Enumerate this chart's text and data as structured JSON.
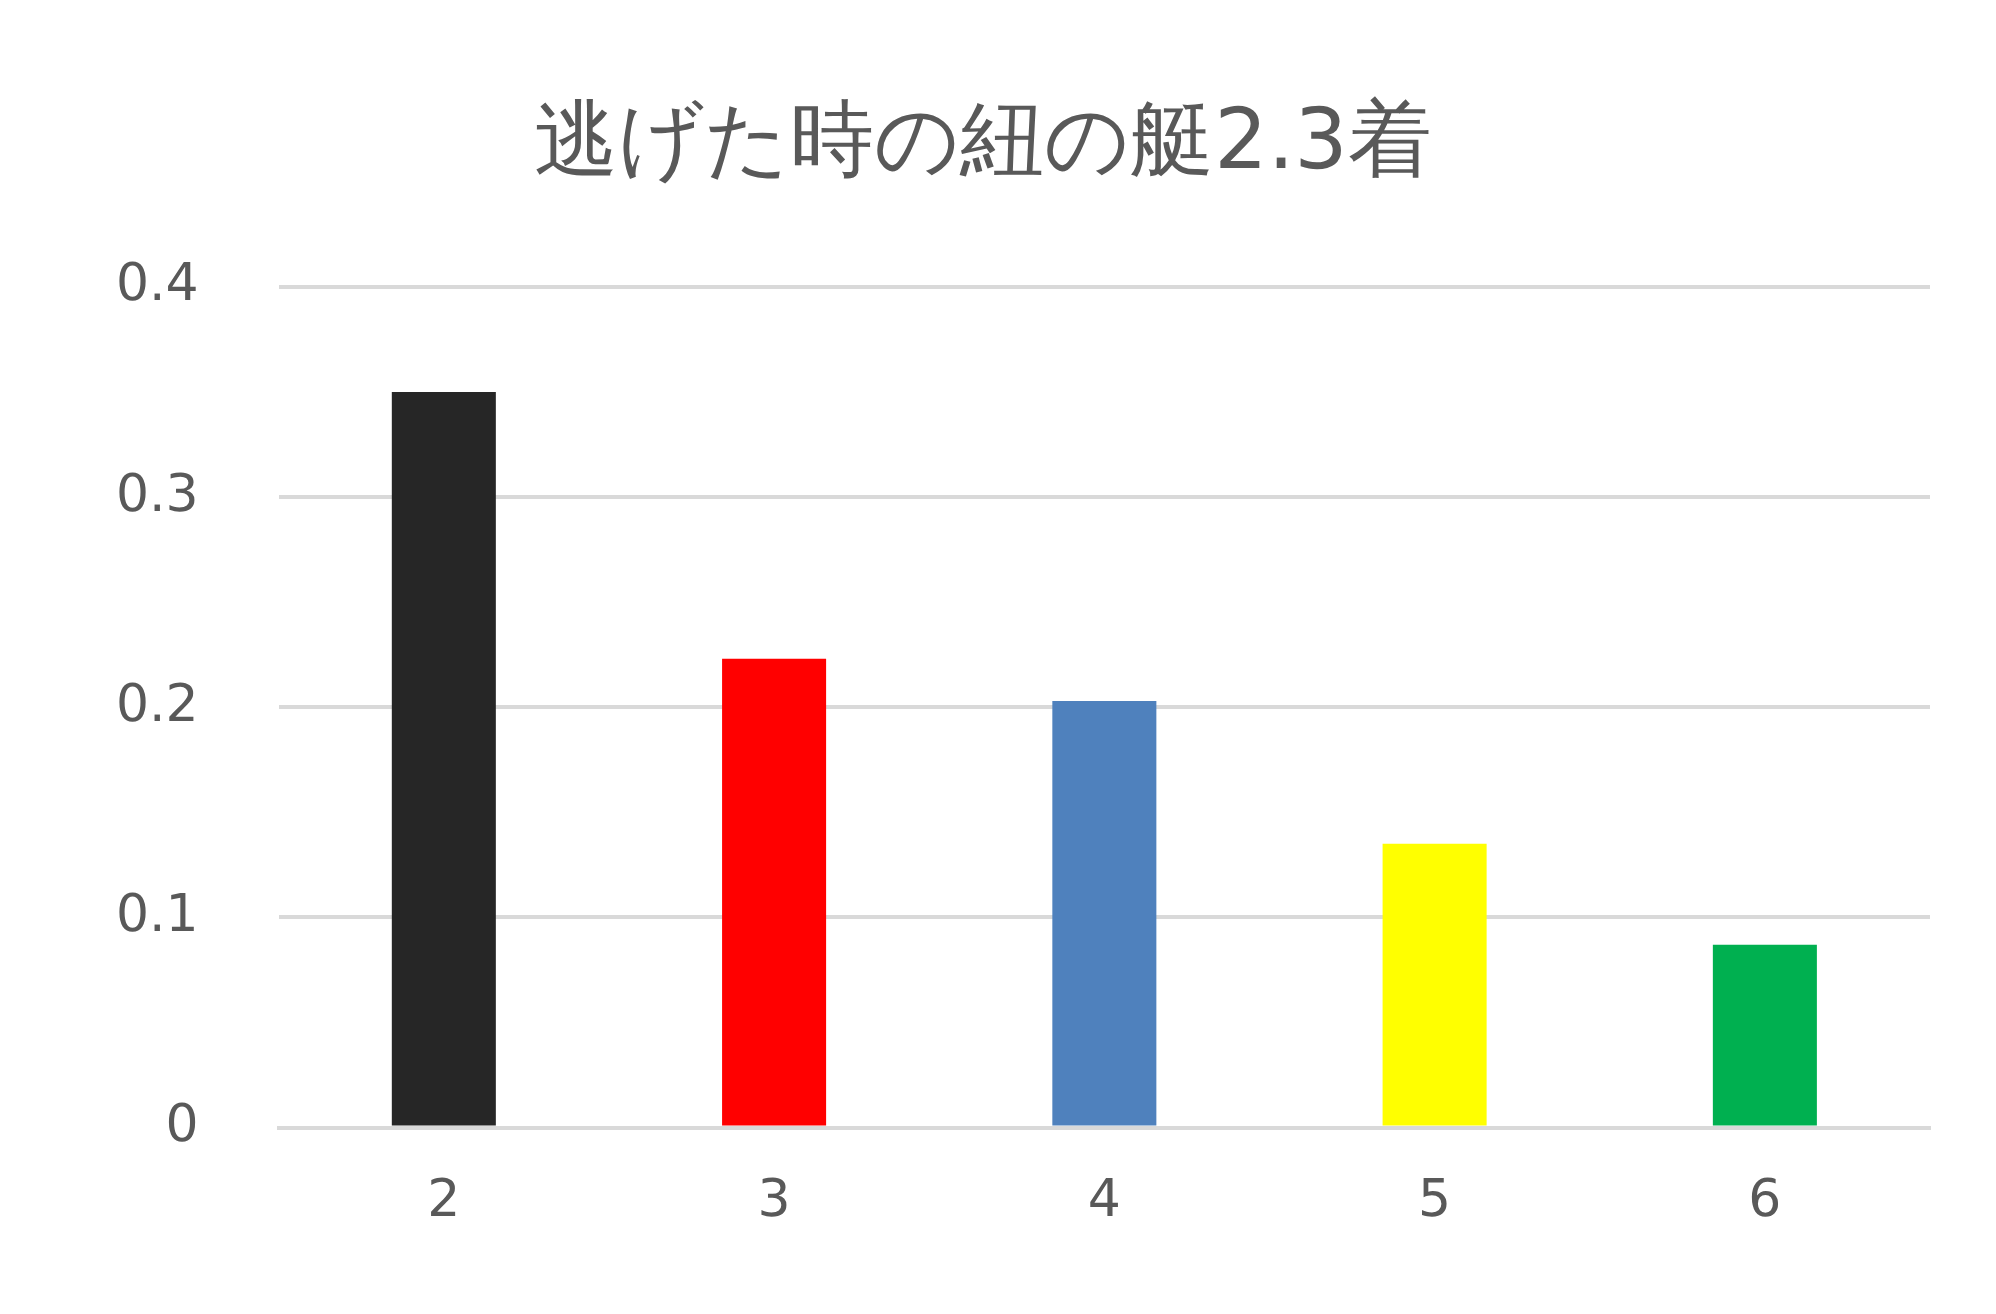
{
  "chart_data": {
    "type": "bar",
    "title": "逃げた時の紐の艇2.3着",
    "categories": [
      "2",
      "3",
      "4",
      "5",
      "6"
    ],
    "values": [
      0.35,
      0.223,
      0.203,
      0.135,
      0.087
    ],
    "colors": [
      "#262626",
      "#ff0000",
      "#4f81bd",
      "#ffff00",
      "#00b050"
    ],
    "ylim": [
      0,
      0.4
    ],
    "yticks": [
      0,
      0.1,
      0.2,
      0.3,
      0.4
    ],
    "grid": "y",
    "legend": false
  }
}
